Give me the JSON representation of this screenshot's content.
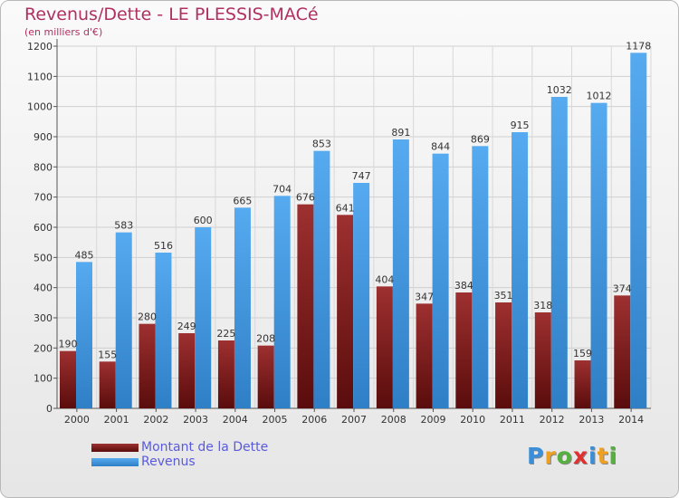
{
  "header": {
    "title": "Revenus/Dette - LE PLESSIS-MACé",
    "subtitle": "(en milliers d'€)"
  },
  "chart_data": {
    "type": "bar",
    "categories": [
      "2000",
      "2001",
      "2002",
      "2003",
      "2004",
      "2005",
      "2006",
      "2007",
      "2008",
      "2009",
      "2010",
      "2011",
      "2012",
      "2013",
      "2014"
    ],
    "series": [
      {
        "name": "Montant de la Dette",
        "color": "#7a1a1a",
        "values": [
          190,
          155,
          280,
          249,
          225,
          208,
          676,
          641,
          404,
          347,
          384,
          351,
          318,
          159,
          374
        ]
      },
      {
        "name": "Revenus",
        "color": "#3d93d9",
        "values": [
          485,
          583,
          516,
          600,
          665,
          704,
          853,
          747,
          891,
          844,
          869,
          915,
          1032,
          1012,
          1178
        ]
      }
    ],
    "yticks": [
      "0",
      "100",
      "200",
      "300",
      "400",
      "500",
      "600",
      "700",
      "800",
      "900",
      "1000",
      "1100",
      "1200"
    ],
    "ylim": [
      0,
      1200
    ],
    "grid": true,
    "legend_position": "bottom-left"
  },
  "brand": {
    "logo_letters": [
      "P",
      "r",
      "o",
      "x",
      "i",
      "t",
      "i"
    ],
    "logo_colors": [
      "#3a8fd8",
      "#f0a020",
      "#55b040",
      "#e03030",
      "#3a8fd8",
      "#f0a020",
      "#55b040"
    ]
  }
}
